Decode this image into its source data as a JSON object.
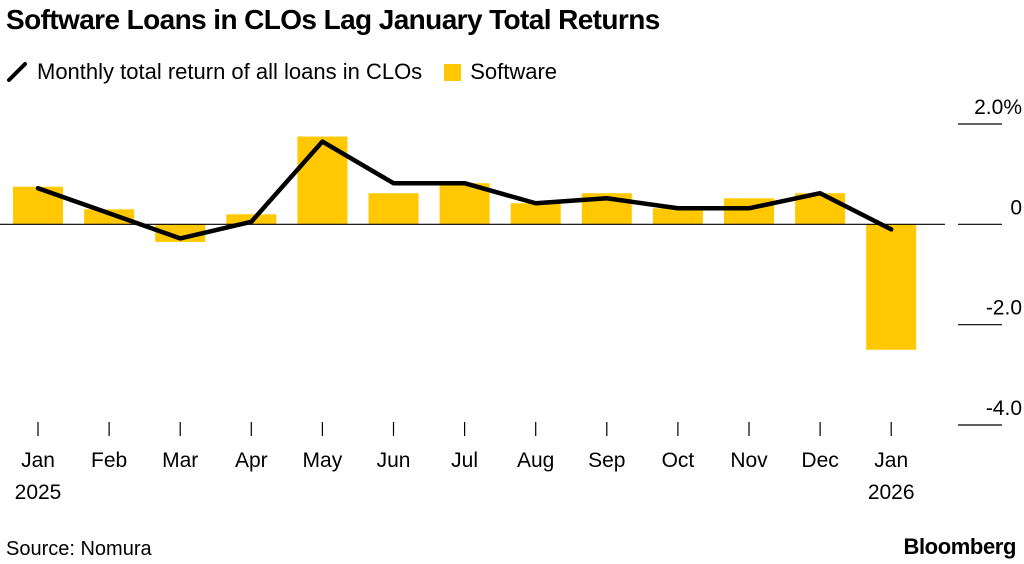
{
  "title": "Software Loans in CLOs Lag January Total Returns",
  "legend": {
    "line_label": "Monthly total return of all loans in CLOs",
    "bar_label": "Software"
  },
  "source": "Source: Nomura",
  "brand": "Bloomberg",
  "colors": {
    "bar": "#ffc800",
    "line": "#000000",
    "axis": "#000000"
  },
  "chart_data": {
    "type": "bar+line",
    "categories": [
      [
        "Jan",
        "2025"
      ],
      [
        "Feb",
        ""
      ],
      [
        "Mar",
        ""
      ],
      [
        "Apr",
        ""
      ],
      [
        "May",
        ""
      ],
      [
        "Jun",
        ""
      ],
      [
        "Jul",
        ""
      ],
      [
        "Aug",
        ""
      ],
      [
        "Sep",
        ""
      ],
      [
        "Oct",
        ""
      ],
      [
        "Nov",
        ""
      ],
      [
        "Dec",
        ""
      ],
      [
        "Jan",
        "2026"
      ]
    ],
    "series": [
      {
        "name": "Software",
        "type": "bar",
        "values": [
          0.75,
          0.3,
          -0.35,
          0.2,
          1.75,
          0.62,
          0.82,
          0.42,
          0.62,
          0.32,
          0.52,
          0.62,
          -2.5
        ]
      },
      {
        "name": "Monthly total return of all loans in CLOs",
        "type": "line",
        "values": [
          0.72,
          0.22,
          -0.28,
          0.05,
          1.65,
          0.82,
          0.82,
          0.42,
          0.52,
          0.32,
          0.32,
          0.62,
          -0.1
        ]
      }
    ],
    "yaxis": {
      "position": "right",
      "ylim": [
        -4.0,
        2.0
      ],
      "ticks": [
        {
          "value": 2.0,
          "label": "2.0%"
        },
        {
          "value": 0,
          "label": "0"
        },
        {
          "value": -2.0,
          "label": "-2.0"
        },
        {
          "value": -4.0,
          "label": "-4.0"
        }
      ]
    },
    "grid": false,
    "legend_position": "top-left"
  }
}
